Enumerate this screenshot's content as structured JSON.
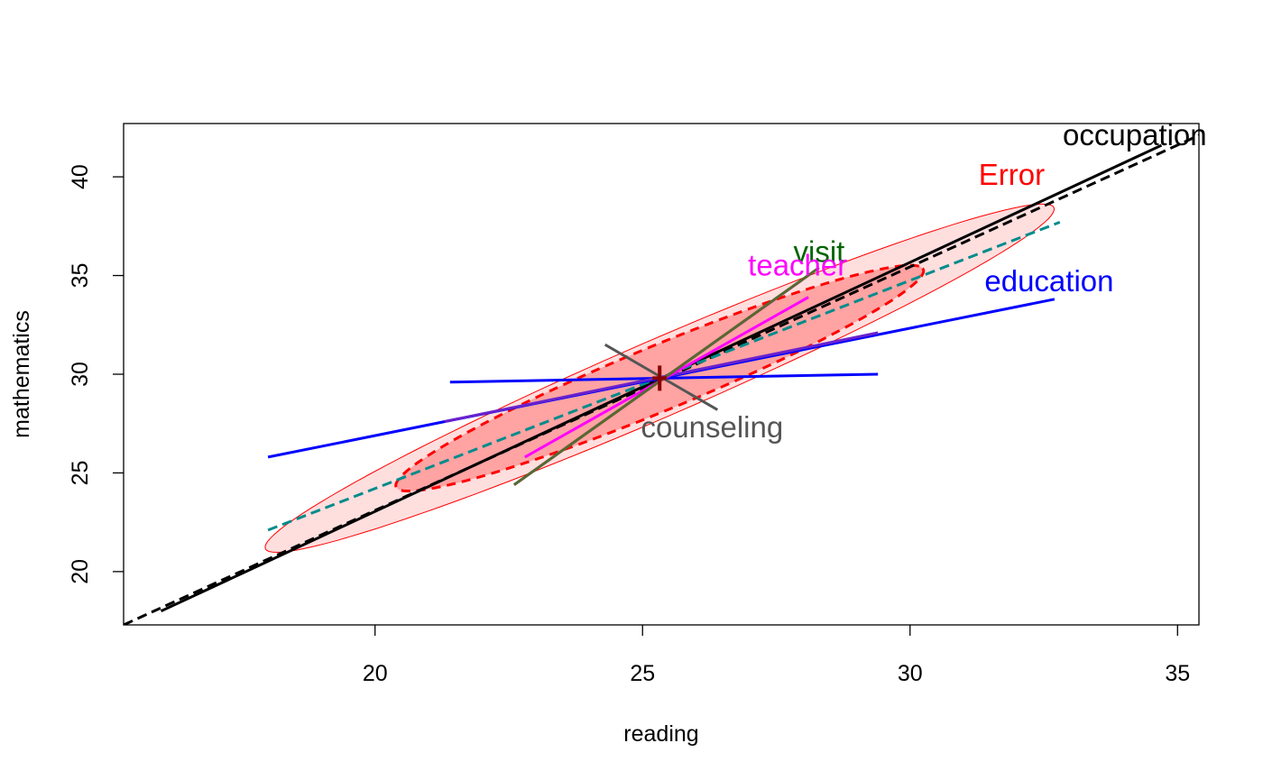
{
  "chart_data": {
    "type": "scatter",
    "title": "",
    "xlabel": "reading",
    "ylabel": "mathematics",
    "xlim": [
      15.3,
      35.4
    ],
    "ylim": [
      17.3,
      42.7
    ],
    "x_ticks": [
      20,
      25,
      30,
      35
    ],
    "y_ticks": [
      20,
      25,
      30,
      35,
      40
    ],
    "grid": false,
    "center": {
      "x": 25.32,
      "y": 29.8
    },
    "ellipses": [
      {
        "name": "Error",
        "color": "#ff0000",
        "fill": "#ffdede",
        "style": "solid",
        "center": [
          25.32,
          29.8
        ],
        "a_axis": [
          7.3,
          8.78
        ],
        "b_axis": [
          -1.05,
          0.87
        ]
      },
      {
        "name": "",
        "color": "#ff0000",
        "fill": "#ffa3a3",
        "style": "dashed",
        "center": [
          25.32,
          29.8
        ],
        "a_axis": [
          4.85,
          5.67
        ],
        "b_axis": [
          -0.9,
          0.75
        ]
      }
    ],
    "segments": [
      {
        "name": "occupation",
        "color": "#000000",
        "style": "solid",
        "x1": 16.0,
        "y1": 18.0,
        "x2": 34.7,
        "y2": 41.6
      },
      {
        "name": "",
        "color": "#000000",
        "style": "dashed",
        "x1": 15.3,
        "y1": 17.3,
        "x2": 35.4,
        "y2": 42.1
      },
      {
        "name": "counseling",
        "color": "#008b8b",
        "style": "dashed",
        "x1": 18.0,
        "y1": 22.1,
        "x2": 32.8,
        "y2": 37.7
      },
      {
        "name": "education",
        "color": "#0000ff",
        "style": "solid",
        "x1": 18.0,
        "y1": 25.8,
        "x2": 32.7,
        "y2": 33.8
      },
      {
        "name": "",
        "color": "#0000ff",
        "style": "solid",
        "x1": 21.4,
        "y1": 29.6,
        "x2": 29.4,
        "y2": 30.0
      },
      {
        "name": "",
        "color": "#6a22cc",
        "style": "solid",
        "x1": 21.3,
        "y1": 27.6,
        "x2": 29.4,
        "y2": 32.1
      },
      {
        "name": "teacher",
        "color": "#ff00ff",
        "style": "solid",
        "x1": 22.8,
        "y1": 25.8,
        "x2": 28.1,
        "y2": 33.9
      },
      {
        "name": "",
        "color": "#cc11aa",
        "style": "solid",
        "x1": 22.6,
        "y1": 24.4,
        "x2": 28.2,
        "y2": 35.2
      },
      {
        "name": "visit",
        "color": "#556b2f",
        "style": "solid",
        "x1": 22.6,
        "y1": 24.4,
        "x2": 28.3,
        "y2": 35.4
      },
      {
        "name": "",
        "color": "#555555",
        "style": "solid",
        "x1": 24.3,
        "y1": 31.5,
        "x2": 26.4,
        "y2": 28.2
      }
    ],
    "labels": [
      {
        "text": "occupation",
        "color": "#000000",
        "x": 34.2,
        "y": 42.1
      },
      {
        "text": "Error",
        "color": "#ff0000",
        "x": 31.9,
        "y": 40.1
      },
      {
        "text": "visit",
        "color": "#006400",
        "x": 28.3,
        "y": 36.2
      },
      {
        "text": "teacher",
        "color": "#ff00ff",
        "x": 27.9,
        "y": 35.5
      },
      {
        "text": "education",
        "color": "#0000ff",
        "x": 32.6,
        "y": 34.7
      },
      {
        "text": "counseling",
        "color": "#555555",
        "x": 26.3,
        "y": 27.3
      }
    ]
  }
}
